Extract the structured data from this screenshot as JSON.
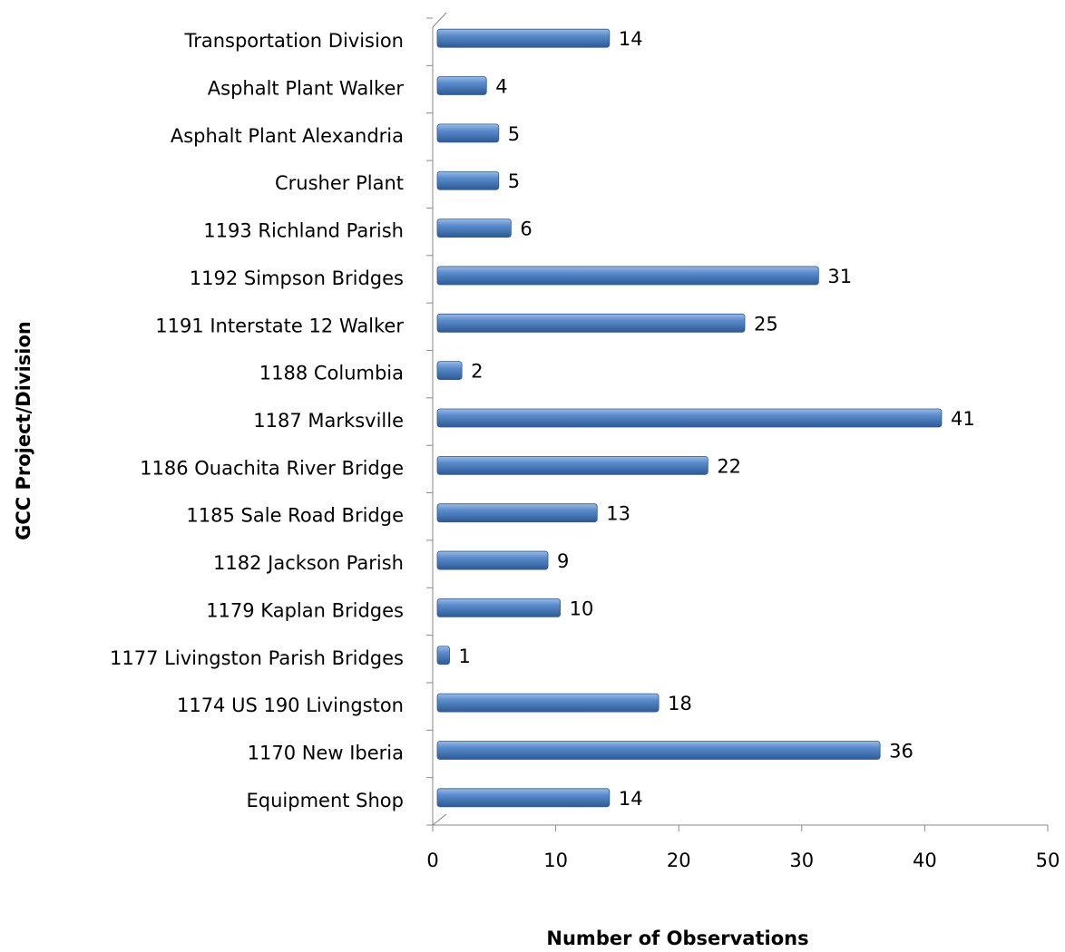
{
  "chart_data": {
    "type": "bar",
    "orientation": "horizontal",
    "x_label": "Number of Observations",
    "y_label": "GCC Project/Division",
    "categories": [
      "Transportation Division",
      "Asphalt Plant Walker",
      "Asphalt Plant Alexandria",
      "Crusher Plant",
      "1193 Richland Parish",
      "1192 Simpson Bridges",
      "1191 Interstate 12 Walker",
      "1188 Columbia",
      "1187 Marksville",
      "1186 Ouachita River Bridge",
      "1185 Sale Road Bridge",
      "1182 Jackson Parish",
      "1179 Kaplan Bridges",
      "1177 Livingston Parish Bridges",
      "1174 US 190 Livingston",
      "1170 New Iberia",
      "Equipment Shop"
    ],
    "values": [
      14,
      4,
      5,
      5,
      6,
      31,
      25,
      2,
      41,
      22,
      13,
      9,
      10,
      1,
      18,
      36,
      14
    ],
    "color": "#4f81bd",
    "xlim": [
      0,
      50
    ],
    "xticks": [
      0,
      10,
      20,
      30,
      40,
      50
    ],
    "grid": false
  }
}
